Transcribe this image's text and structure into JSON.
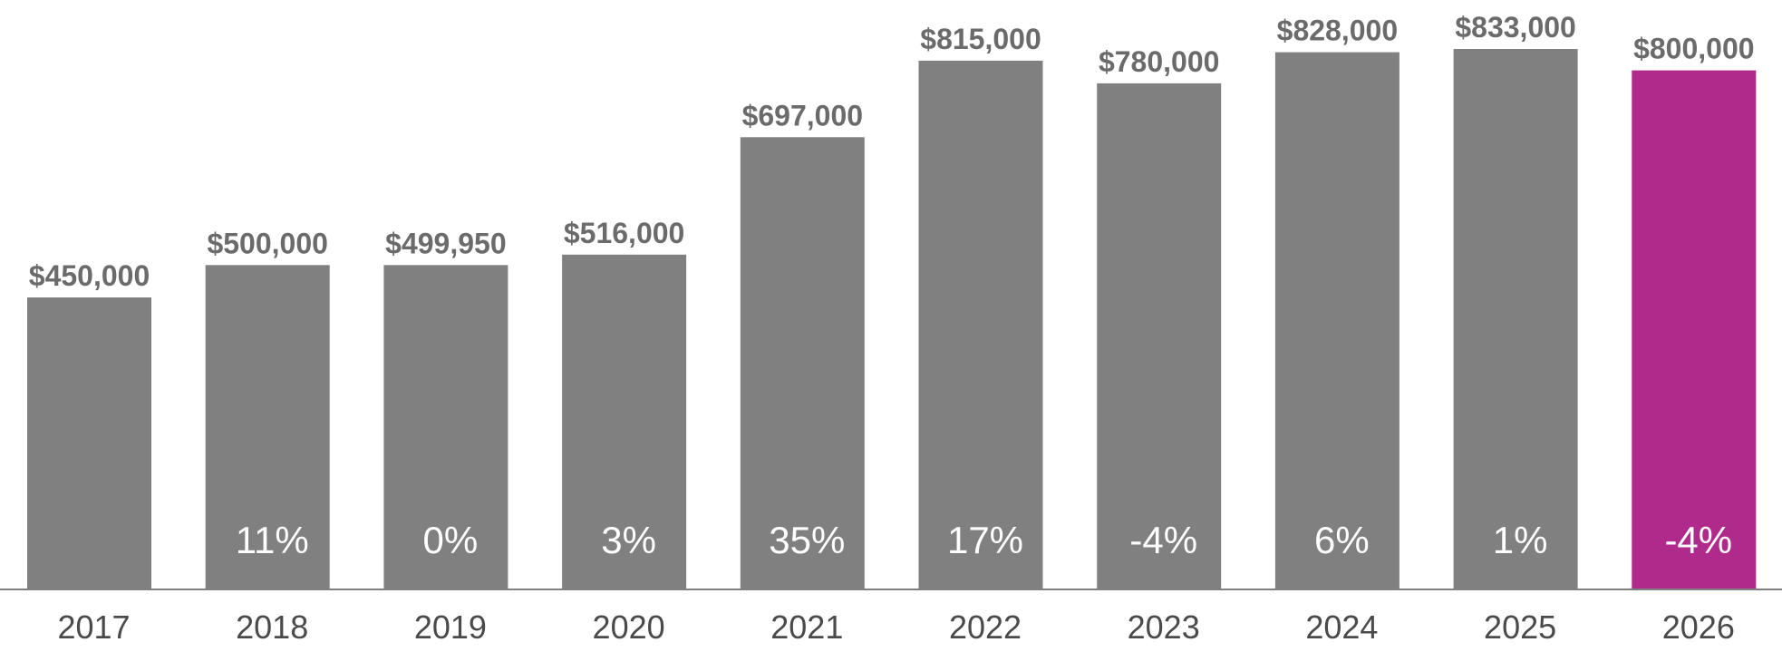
{
  "chart_data": {
    "type": "bar",
    "categories": [
      "2017",
      "2018",
      "2019",
      "2020",
      "2021",
      "2022",
      "2023",
      "2024",
      "2025",
      "2026"
    ],
    "values": [
      450000,
      500000,
      499950,
      516000,
      697000,
      815000,
      780000,
      828000,
      833000,
      800000
    ],
    "value_labels": [
      "$450,000",
      "$500,000",
      "$499,950",
      "$516,000",
      "$697,000",
      "$815,000",
      "$780,000",
      "$828,000",
      "$833,000",
      "$800,000"
    ],
    "change_labels": [
      "",
      "11%",
      "0%",
      "3%",
      "35%",
      "17%",
      "-4%",
      "6%",
      "1%",
      "-4%"
    ],
    "title": "",
    "xlabel": "",
    "ylabel": "",
    "ylim": [
      0,
      833000
    ],
    "grid": false,
    "colors": {
      "default_bar": "#808080",
      "highlight_bar": "#b02a8c",
      "value_label": "#6b6b6b",
      "change_label": "#ffffff",
      "axis": "#808080",
      "tick_label": "#4a4a4a"
    },
    "highlight_index": 9
  }
}
